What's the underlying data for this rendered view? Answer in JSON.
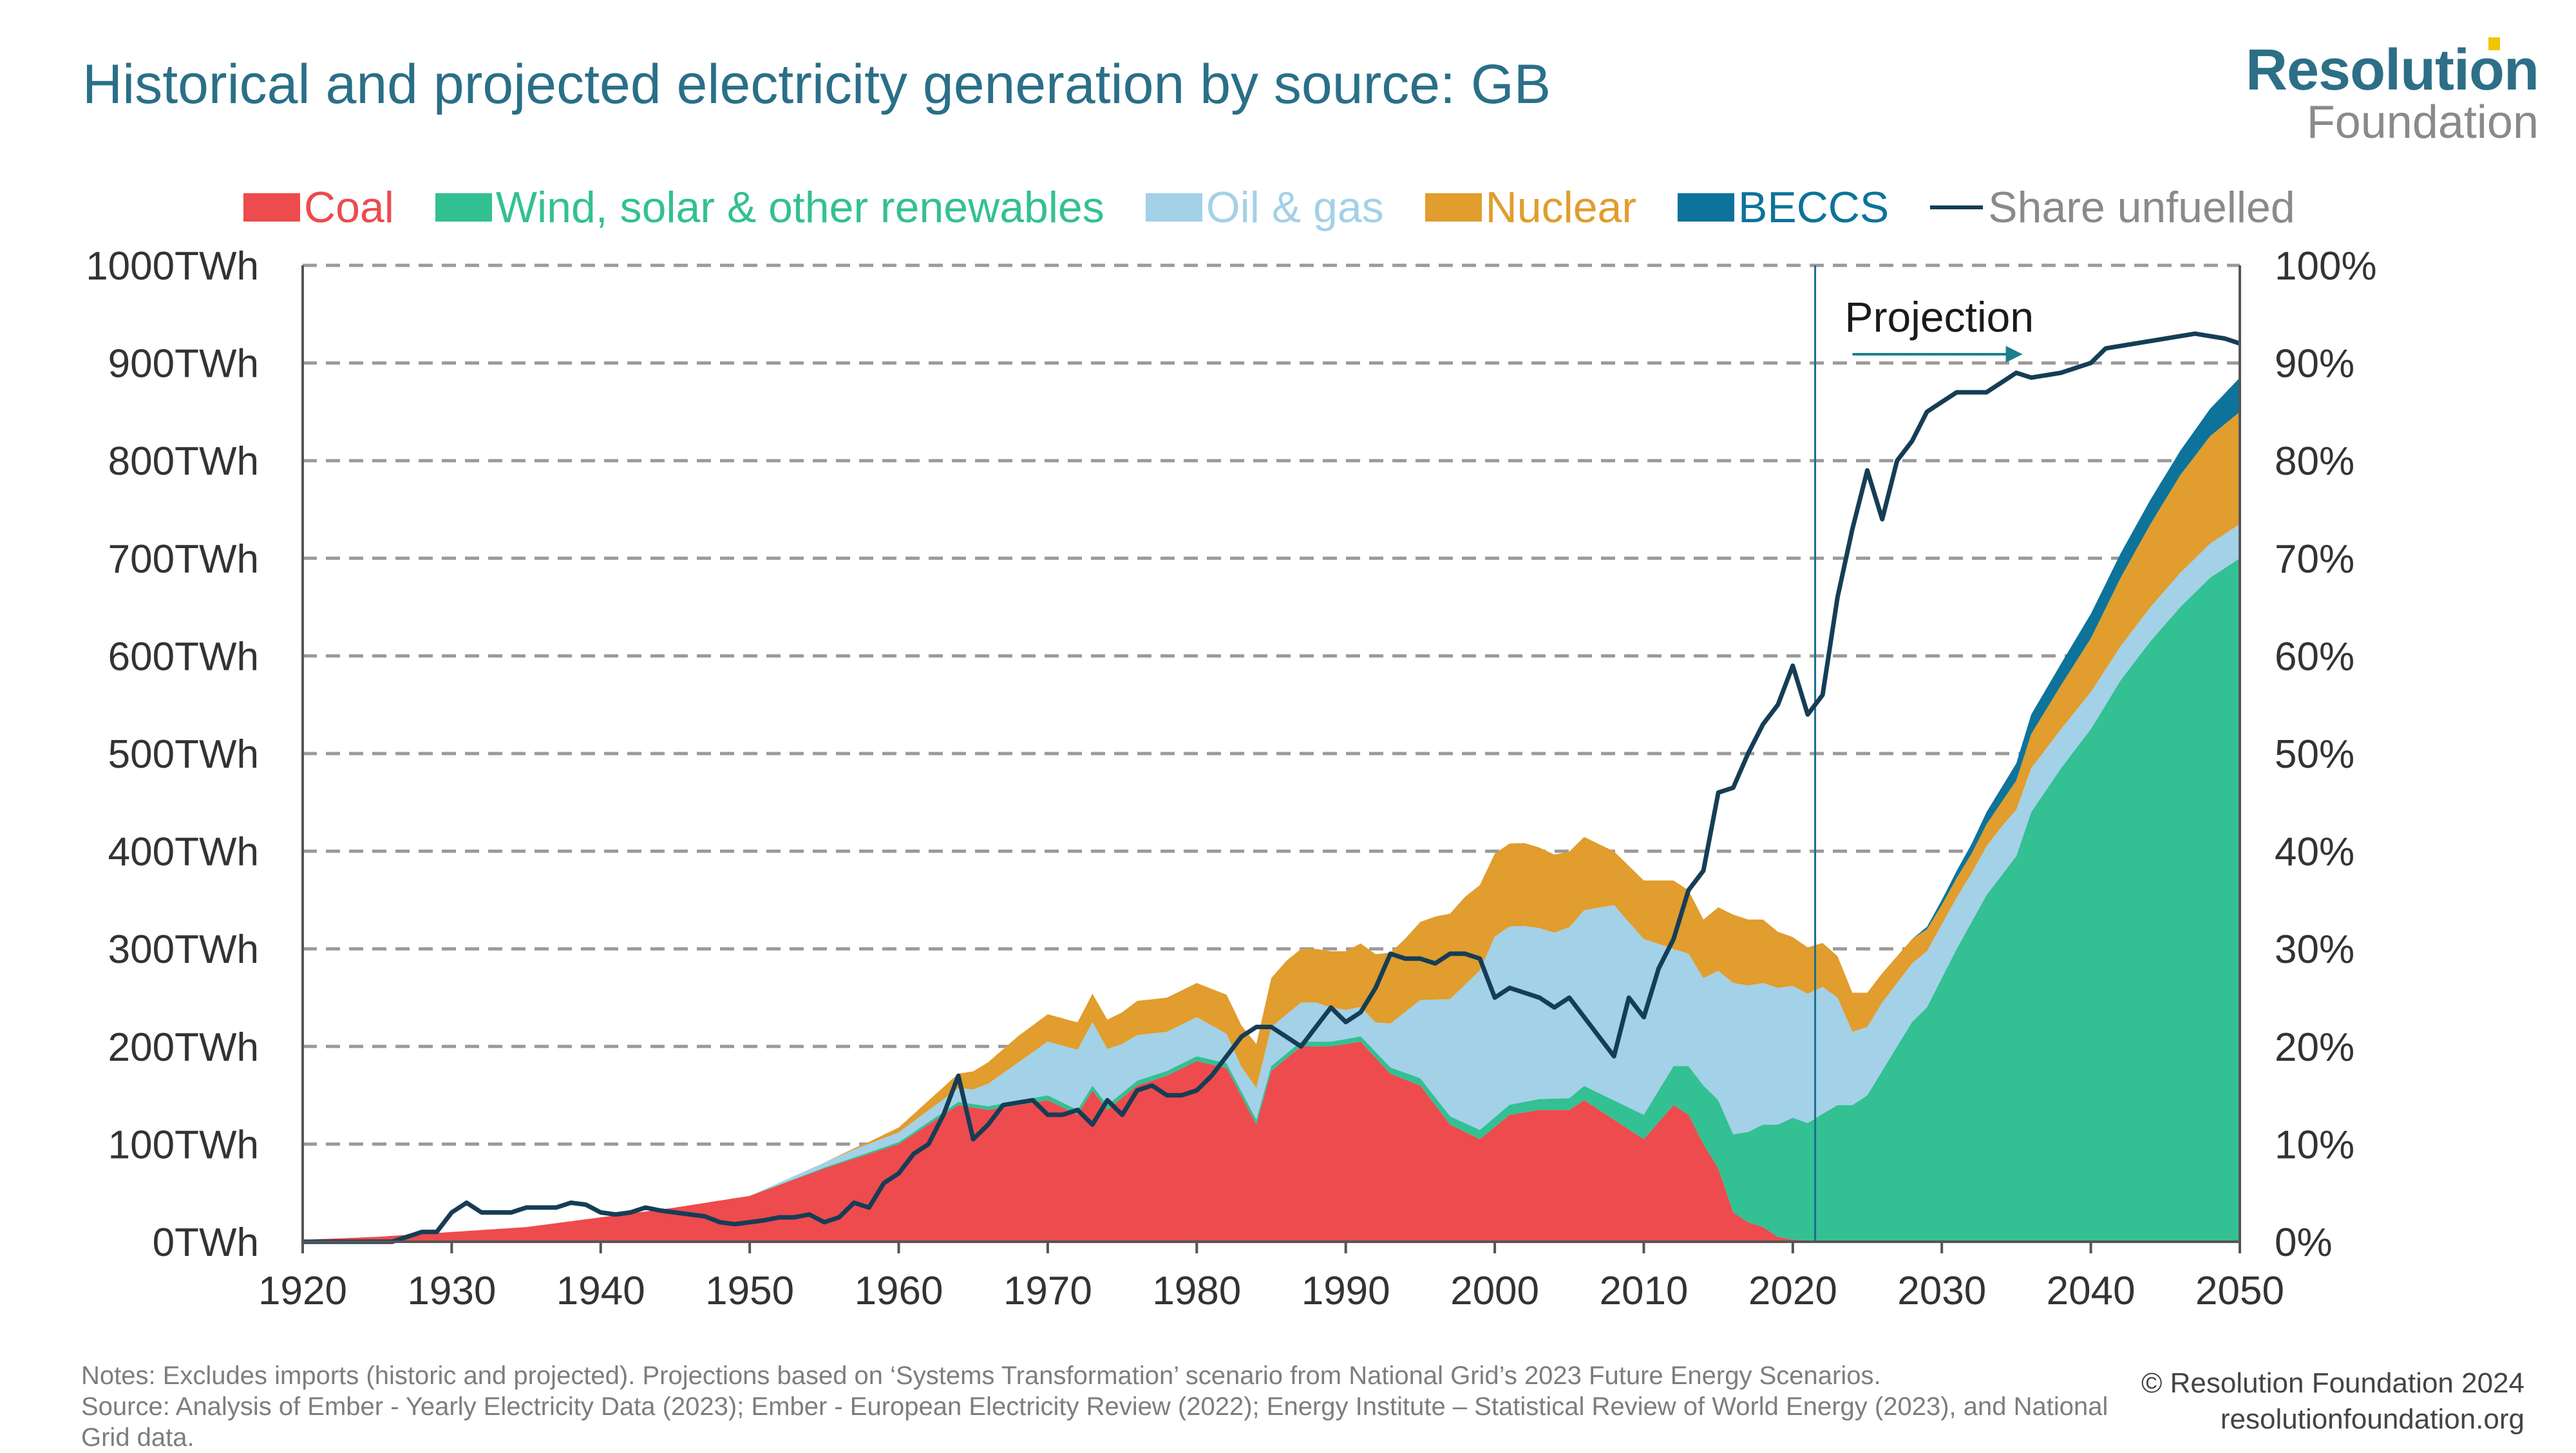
{
  "title": "Historical and projected electricity generation by source: GB",
  "logo": {
    "line1": "Resolution",
    "line2": "Foundation"
  },
  "legend": [
    {
      "label": "Coal",
      "color": "#ed4b4d",
      "kind": "area"
    },
    {
      "label": "Wind, solar & other renewables",
      "color": "#33c093",
      "kind": "area"
    },
    {
      "label": "Oil & gas",
      "color": "#a3d1e8",
      "kind": "area"
    },
    {
      "label": "Nuclear",
      "color": "#e19d2d",
      "kind": "area"
    },
    {
      "label": "BECCS",
      "color": "#0d739b",
      "kind": "area"
    },
    {
      "label": "Share unfuelled",
      "color": "#163d56",
      "kind": "line",
      "text_color": "#8a8a8a"
    }
  ],
  "annotation": "Projection",
  "notes": [
    "Notes: Excludes imports (historic and projected). Projections based on ‘Systems Transformation’ scenario from National Grid’s 2023 Future Energy Scenarios.",
    "Source: Analysis of Ember - Yearly Electricity Data (2023); Ember - European Electricity Review (2022); Energy Institute – Statistical Review of World Energy (2023), and National Grid data."
  ],
  "credit": {
    "line1": "© Resolution Foundation 2024",
    "line2": "resolutionfoundation.org"
  },
  "chart_data": {
    "type": "area",
    "title": "Historical and projected electricity generation by source: GB",
    "xlim": [
      1920,
      2050
    ],
    "ylim": [
      0,
      1000
    ],
    "y2lim": [
      0,
      100
    ],
    "x_ticks": [
      "1920",
      "1930",
      "1940",
      "1950",
      "1960",
      "1970",
      "1980",
      "1990",
      "2000",
      "2010",
      "2020",
      "2030",
      "2040",
      "2050"
    ],
    "y_ticks": [
      "0TWh",
      "100TWh",
      "200TWh",
      "300TWh",
      "400TWh",
      "500TWh",
      "600TWh",
      "700TWh",
      "800TWh",
      "900TWh",
      "1000TWh"
    ],
    "y2_ticks": [
      "0%",
      "10%",
      "20%",
      "30%",
      "40%",
      "50%",
      "60%",
      "70%",
      "80%",
      "90%",
      "100%"
    ],
    "grid": "horizontal dashed",
    "legend_position": "top",
    "projection_start": 2021.5,
    "stacked_series": [
      {
        "name": "Coal",
        "color": "#ed4b4d",
        "points": [
          [
            1920,
            2
          ],
          [
            1925,
            5
          ],
          [
            1930,
            10
          ],
          [
            1935,
            15
          ],
          [
            1940,
            25
          ],
          [
            1945,
            35
          ],
          [
            1950,
            47
          ],
          [
            1955,
            75
          ],
          [
            1960,
            100
          ],
          [
            1962,
            120
          ],
          [
            1964,
            140
          ],
          [
            1966,
            135
          ],
          [
            1968,
            140
          ],
          [
            1970,
            145
          ],
          [
            1972,
            130
          ],
          [
            1973,
            155
          ],
          [
            1974,
            135
          ],
          [
            1976,
            160
          ],
          [
            1978,
            170
          ],
          [
            1980,
            185
          ],
          [
            1982,
            178
          ],
          [
            1984,
            120
          ],
          [
            1985,
            175
          ],
          [
            1987,
            200
          ],
          [
            1989,
            200
          ],
          [
            1991,
            205
          ],
          [
            1993,
            172
          ],
          [
            1995,
            160
          ],
          [
            1997,
            120
          ],
          [
            1999,
            105
          ],
          [
            2001,
            130
          ],
          [
            2003,
            135
          ],
          [
            2005,
            135
          ],
          [
            2006,
            145
          ],
          [
            2008,
            125
          ],
          [
            2010,
            105
          ],
          [
            2012,
            140
          ],
          [
            2013,
            130
          ],
          [
            2014,
            100
          ],
          [
            2015,
            75
          ],
          [
            2016,
            30
          ],
          [
            2017,
            20
          ],
          [
            2018,
            15
          ],
          [
            2019,
            5
          ],
          [
            2020,
            2
          ],
          [
            2022,
            1
          ],
          [
            2023,
            0
          ],
          [
            2050,
            0
          ]
        ]
      },
      {
        "name": "Wind, solar & other renewables",
        "color": "#33c093",
        "points": [
          [
            1920,
            0
          ],
          [
            1950,
            0
          ],
          [
            1960,
            2
          ],
          [
            1970,
            5
          ],
          [
            1980,
            5
          ],
          [
            1990,
            5
          ],
          [
            2000,
            10
          ],
          [
            2005,
            12
          ],
          [
            2010,
            25
          ],
          [
            2012,
            40
          ],
          [
            2014,
            60
          ],
          [
            2016,
            80
          ],
          [
            2018,
            105
          ],
          [
            2020,
            125
          ],
          [
            2021,
            120
          ],
          [
            2022,
            130
          ],
          [
            2023,
            140
          ],
          [
            2024,
            140
          ],
          [
            2025,
            150
          ],
          [
            2026,
            175
          ],
          [
            2028,
            225
          ],
          [
            2029,
            240
          ],
          [
            2031,
            300
          ],
          [
            2033,
            355
          ],
          [
            2035,
            395
          ],
          [
            2036,
            440
          ],
          [
            2038,
            485
          ],
          [
            2040,
            525
          ],
          [
            2042,
            575
          ],
          [
            2044,
            615
          ],
          [
            2046,
            650
          ],
          [
            2048,
            680
          ],
          [
            2050,
            700
          ]
        ]
      },
      {
        "name": "Oil & gas",
        "color": "#a3d1e8",
        "points": [
          [
            1920,
            0
          ],
          [
            1950,
            0
          ],
          [
            1955,
            5
          ],
          [
            1957,
            8
          ],
          [
            1960,
            10
          ],
          [
            1962,
            12
          ],
          [
            1965,
            15
          ],
          [
            1970,
            55
          ],
          [
            1973,
            65
          ],
          [
            1975,
            50
          ],
          [
            1978,
            40
          ],
          [
            1980,
            40
          ],
          [
            1983,
            25
          ],
          [
            1985,
            40
          ],
          [
            1988,
            40
          ],
          [
            1990,
            30
          ],
          [
            1992,
            30
          ],
          [
            1993,
            45
          ],
          [
            1995,
            80
          ],
          [
            1997,
            120
          ],
          [
            2000,
            185
          ],
          [
            2002,
            180
          ],
          [
            2004,
            170
          ],
          [
            2006,
            180
          ],
          [
            2008,
            200
          ],
          [
            2010,
            180
          ],
          [
            2012,
            120
          ],
          [
            2014,
            110
          ],
          [
            2016,
            155
          ],
          [
            2018,
            145
          ],
          [
            2020,
            135
          ],
          [
            2022,
            130
          ],
          [
            2023,
            110
          ],
          [
            2024,
            75
          ],
          [
            2025,
            70
          ],
          [
            2026,
            70
          ],
          [
            2028,
            60
          ],
          [
            2030,
            55
          ],
          [
            2032,
            50
          ],
          [
            2034,
            50
          ],
          [
            2036,
            45
          ],
          [
            2038,
            40
          ],
          [
            2040,
            38
          ],
          [
            2042,
            35
          ],
          [
            2044,
            35
          ],
          [
            2046,
            35
          ],
          [
            2048,
            35
          ],
          [
            2050,
            35
          ]
        ]
      },
      {
        "name": "Nuclear",
        "color": "#e19d2d",
        "points": [
          [
            1920,
            0
          ],
          [
            1955,
            0
          ],
          [
            1958,
            2
          ],
          [
            1960,
            5
          ],
          [
            1962,
            10
          ],
          [
            1964,
            15
          ],
          [
            1966,
            22
          ],
          [
            1968,
            27
          ],
          [
            1970,
            28
          ],
          [
            1972,
            28
          ],
          [
            1974,
            30
          ],
          [
            1976,
            35
          ],
          [
            1978,
            35
          ],
          [
            1980,
            35
          ],
          [
            1982,
            40
          ],
          [
            1984,
            45
          ],
          [
            1986,
            55
          ],
          [
            1988,
            55
          ],
          [
            1990,
            60
          ],
          [
            1992,
            70
          ],
          [
            1994,
            75
          ],
          [
            1996,
            85
          ],
          [
            1998,
            90
          ],
          [
            2000,
            85
          ],
          [
            2002,
            85
          ],
          [
            2004,
            80
          ],
          [
            2006,
            75
          ],
          [
            2008,
            55
          ],
          [
            2010,
            60
          ],
          [
            2012,
            70
          ],
          [
            2014,
            60
          ],
          [
            2016,
            70
          ],
          [
            2018,
            65
          ],
          [
            2020,
            50
          ],
          [
            2022,
            45
          ],
          [
            2024,
            40
          ],
          [
            2026,
            30
          ],
          [
            2028,
            25
          ],
          [
            2030,
            20
          ],
          [
            2032,
            20
          ],
          [
            2034,
            25
          ],
          [
            2036,
            35
          ],
          [
            2038,
            45
          ],
          [
            2040,
            55
          ],
          [
            2042,
            70
          ],
          [
            2044,
            85
          ],
          [
            2046,
            100
          ],
          [
            2048,
            110
          ],
          [
            2050,
            115
          ]
        ]
      },
      {
        "name": "BECCS",
        "color": "#0d739b",
        "points": [
          [
            1920,
            0
          ],
          [
            2028,
            0
          ],
          [
            2030,
            5
          ],
          [
            2032,
            10
          ],
          [
            2034,
            15
          ],
          [
            2036,
            20
          ],
          [
            2038,
            22
          ],
          [
            2040,
            25
          ],
          [
            2042,
            25
          ],
          [
            2044,
            25
          ],
          [
            2046,
            25
          ],
          [
            2048,
            28
          ],
          [
            2050,
            35
          ]
        ]
      }
    ],
    "line_series": {
      "name": "Share unfuelled",
      "color": "#163d56",
      "axis": "right",
      "points": [
        [
          1920,
          0
        ],
        [
          1923,
          0
        ],
        [
          1926,
          0
        ],
        [
          1928,
          1
        ],
        [
          1929,
          1
        ],
        [
          1930,
          3
        ],
        [
          1931,
          4
        ],
        [
          1932,
          3
        ],
        [
          1934,
          3
        ],
        [
          1935,
          3.5
        ],
        [
          1937,
          3.5
        ],
        [
          1938,
          4
        ],
        [
          1939,
          3.8
        ],
        [
          1940,
          3
        ],
        [
          1941,
          2.8
        ],
        [
          1942,
          3
        ],
        [
          1943,
          3.5
        ],
        [
          1944,
          3.2
        ],
        [
          1946,
          2.8
        ],
        [
          1947,
          2.6
        ],
        [
          1948,
          2
        ],
        [
          1949,
          1.8
        ],
        [
          1950,
          2
        ],
        [
          1951,
          2.2
        ],
        [
          1952,
          2.5
        ],
        [
          1953,
          2.5
        ],
        [
          1954,
          2.8
        ],
        [
          1955,
          2
        ],
        [
          1956,
          2.5
        ],
        [
          1957,
          4
        ],
        [
          1958,
          3.5
        ],
        [
          1959,
          6
        ],
        [
          1960,
          7
        ],
        [
          1961,
          9
        ],
        [
          1962,
          10
        ],
        [
          1963,
          13
        ],
        [
          1964,
          17
        ],
        [
          1965,
          10.5
        ],
        [
          1966,
          12
        ],
        [
          1967,
          14
        ],
        [
          1969,
          14.5
        ],
        [
          1970,
          13
        ],
        [
          1971,
          13
        ],
        [
          1972,
          13.5
        ],
        [
          1973,
          12
        ],
        [
          1974,
          14.5
        ],
        [
          1975,
          13
        ],
        [
          1976,
          15.5
        ],
        [
          1977,
          16
        ],
        [
          1978,
          15
        ],
        [
          1979,
          15
        ],
        [
          1980,
          15.5
        ],
        [
          1981,
          17
        ],
        [
          1982,
          19
        ],
        [
          1983,
          21
        ],
        [
          1984,
          22
        ],
        [
          1985,
          22
        ],
        [
          1986,
          21
        ],
        [
          1987,
          20
        ],
        [
          1988,
          22
        ],
        [
          1989,
          24
        ],
        [
          1990,
          22.5
        ],
        [
          1991,
          23.5
        ],
        [
          1992,
          26
        ],
        [
          1993,
          29.5
        ],
        [
          1994,
          29
        ],
        [
          1995,
          29
        ],
        [
          1996,
          28.5
        ],
        [
          1997,
          29.5
        ],
        [
          1998,
          29.5
        ],
        [
          1999,
          29
        ],
        [
          2000,
          25
        ],
        [
          2001,
          26
        ],
        [
          2002,
          25.5
        ],
        [
          2003,
          25
        ],
        [
          2004,
          24
        ],
        [
          2005,
          25
        ],
        [
          2006,
          23
        ],
        [
          2007,
          21
        ],
        [
          2008,
          19
        ],
        [
          2009,
          25
        ],
        [
          2010,
          23
        ],
        [
          2011,
          28
        ],
        [
          2012,
          31
        ],
        [
          2013,
          36
        ],
        [
          2014,
          38
        ],
        [
          2015,
          46
        ],
        [
          2016,
          46.5
        ],
        [
          2017,
          50
        ],
        [
          2018,
          53
        ],
        [
          2019,
          55
        ],
        [
          2020,
          59
        ],
        [
          2021,
          54
        ],
        [
          2022,
          56
        ],
        [
          2023,
          66
        ],
        [
          2024,
          73
        ],
        [
          2025,
          79
        ],
        [
          2026,
          74
        ],
        [
          2027,
          80
        ],
        [
          2028,
          82
        ],
        [
          2029,
          85
        ],
        [
          2030,
          86
        ],
        [
          2031,
          87
        ],
        [
          2033,
          87
        ],
        [
          2034,
          88
        ],
        [
          2035,
          89
        ],
        [
          2036,
          88.5
        ],
        [
          2038,
          89
        ],
        [
          2040,
          90
        ],
        [
          2041,
          91.5
        ],
        [
          2043,
          92
        ],
        [
          2045,
          92.5
        ],
        [
          2047,
          93
        ],
        [
          2049,
          92.5
        ],
        [
          2050,
          92
        ]
      ]
    }
  }
}
